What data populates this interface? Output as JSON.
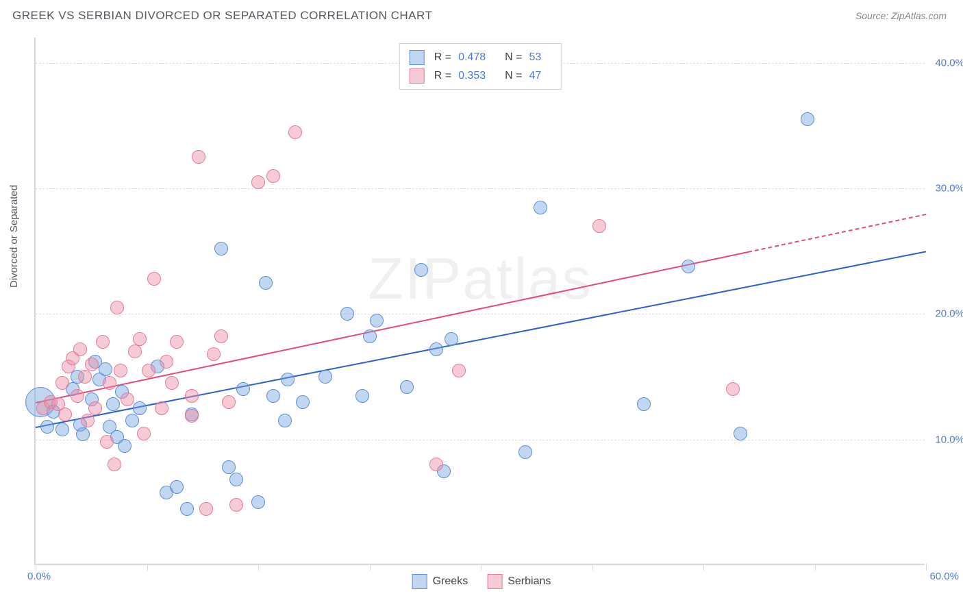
{
  "title": "GREEK VS SERBIAN DIVORCED OR SEPARATED CORRELATION CHART",
  "source": "Source: ZipAtlas.com",
  "watermark_a": "ZIP",
  "watermark_b": "atlas",
  "chart": {
    "type": "scatter",
    "y_axis_label": "Divorced or Separated",
    "xlim": [
      0,
      60
    ],
    "ylim": [
      0,
      42
    ],
    "x_ticks": [
      0,
      7.5,
      15,
      22.5,
      30,
      37.5,
      45,
      52.5,
      60
    ],
    "x_tick_labels_shown": {
      "0": "0.0%",
      "60": "60.0%"
    },
    "y_gridlines": [
      10,
      20,
      30,
      40
    ],
    "y_tick_labels": {
      "10": "10.0%",
      "20": "20.0%",
      "30": "30.0%",
      "40": "40.0%"
    },
    "background_color": "#ffffff",
    "grid_color": "#dcdcdc",
    "axis_color": "#d8d8d8",
    "tick_label_color": "#4a7ad4",
    "series": [
      {
        "name": "Greeks",
        "marker_fill": "rgba(117,163,224,0.45)",
        "marker_stroke": "#5c8fd6",
        "marker_radius": 9,
        "trend_color": "#2a62c9",
        "trend_width": 2.5,
        "trend_x0": 0,
        "trend_y0": 11.0,
        "trend_x1": 60,
        "trend_y1": 25.0,
        "trend_solid_until_x": 60,
        "points": [
          [
            0.3,
            13.0,
            22
          ],
          [
            0.8,
            11.0,
            10
          ],
          [
            1.2,
            12.2,
            10
          ],
          [
            1.8,
            10.8,
            10
          ],
          [
            2.5,
            14.0,
            10
          ],
          [
            2.8,
            15.0,
            10
          ],
          [
            3.0,
            11.2,
            10
          ],
          [
            3.2,
            10.4,
            10
          ],
          [
            3.8,
            13.2,
            10
          ],
          [
            4.0,
            16.2,
            10
          ],
          [
            4.3,
            14.8,
            10
          ],
          [
            4.7,
            15.6,
            10
          ],
          [
            5.0,
            11.0,
            10
          ],
          [
            5.2,
            12.8,
            10
          ],
          [
            5.5,
            10.2,
            10
          ],
          [
            5.8,
            13.8,
            10
          ],
          [
            6.0,
            9.5,
            10
          ],
          [
            6.5,
            11.5,
            10
          ],
          [
            7.0,
            12.5,
            10
          ],
          [
            8.2,
            15.8,
            10
          ],
          [
            8.8,
            5.8,
            10
          ],
          [
            9.5,
            6.2,
            10
          ],
          [
            10.2,
            4.5,
            10
          ],
          [
            10.5,
            12.0,
            10
          ],
          [
            12.5,
            25.2,
            10
          ],
          [
            13.0,
            7.8,
            10
          ],
          [
            13.5,
            6.8,
            10
          ],
          [
            14.0,
            14.0,
            10
          ],
          [
            15.0,
            5.0,
            10
          ],
          [
            15.5,
            22.5,
            10
          ],
          [
            16.0,
            13.5,
            10
          ],
          [
            16.8,
            11.5,
            10
          ],
          [
            17.0,
            14.8,
            10
          ],
          [
            18.0,
            13.0,
            10
          ],
          [
            19.5,
            15.0,
            10
          ],
          [
            21.0,
            20.0,
            10
          ],
          [
            22.0,
            13.5,
            10
          ],
          [
            22.5,
            18.2,
            10
          ],
          [
            23.0,
            19.5,
            10
          ],
          [
            25.0,
            14.2,
            10
          ],
          [
            26.0,
            23.5,
            10
          ],
          [
            27.0,
            17.2,
            10
          ],
          [
            27.5,
            7.5,
            10
          ],
          [
            28.0,
            18.0,
            10
          ],
          [
            33.0,
            9.0,
            10
          ],
          [
            34.0,
            28.5,
            10
          ],
          [
            41.0,
            12.8,
            10
          ],
          [
            44.0,
            23.8,
            10
          ],
          [
            47.5,
            10.5,
            10
          ],
          [
            52.0,
            35.5,
            10
          ]
        ]
      },
      {
        "name": "Serbians",
        "marker_fill": "rgba(238,140,165,0.45)",
        "marker_stroke": "#e77a9a",
        "marker_radius": 9,
        "trend_color": "#e34b78",
        "trend_width": 2,
        "trend_x0": 0,
        "trend_y0": 13.0,
        "trend_x1": 60,
        "trend_y1": 28.0,
        "trend_solid_until_x": 48,
        "points": [
          [
            0.5,
            12.5,
            10
          ],
          [
            1.0,
            13.0,
            10
          ],
          [
            1.5,
            12.8,
            10
          ],
          [
            1.8,
            14.5,
            10
          ],
          [
            2.0,
            12.0,
            10
          ],
          [
            2.2,
            15.8,
            10
          ],
          [
            2.5,
            16.5,
            10
          ],
          [
            2.8,
            13.5,
            10
          ],
          [
            3.0,
            17.2,
            10
          ],
          [
            3.3,
            15.0,
            10
          ],
          [
            3.5,
            11.5,
            10
          ],
          [
            3.8,
            16.0,
            10
          ],
          [
            4.0,
            12.5,
            10
          ],
          [
            4.5,
            17.8,
            10
          ],
          [
            4.8,
            9.8,
            10
          ],
          [
            5.0,
            14.5,
            10
          ],
          [
            5.3,
            8.0,
            10
          ],
          [
            5.7,
            15.5,
            10
          ],
          [
            5.5,
            20.5,
            10
          ],
          [
            6.2,
            13.2,
            10
          ],
          [
            6.7,
            17.0,
            10
          ],
          [
            7.0,
            18.0,
            10
          ],
          [
            7.3,
            10.5,
            10
          ],
          [
            7.6,
            15.5,
            10
          ],
          [
            8.0,
            22.8,
            10
          ],
          [
            8.5,
            12.5,
            10
          ],
          [
            8.8,
            16.2,
            10
          ],
          [
            9.2,
            14.5,
            10
          ],
          [
            9.5,
            17.8,
            10
          ],
          [
            10.5,
            13.5,
            10
          ],
          [
            11.0,
            32.5,
            10
          ],
          [
            11.5,
            4.5,
            10
          ],
          [
            12.0,
            16.8,
            10
          ],
          [
            12.5,
            18.2,
            10
          ],
          [
            13.0,
            13.0,
            10
          ],
          [
            13.5,
            4.8,
            10
          ],
          [
            15.0,
            30.5,
            10
          ],
          [
            16.0,
            31.0,
            10
          ],
          [
            17.5,
            34.5,
            10
          ],
          [
            10.5,
            11.9,
            10
          ],
          [
            27.0,
            8.0,
            10
          ],
          [
            28.5,
            15.5,
            10
          ],
          [
            38.0,
            27.0,
            10
          ],
          [
            47.0,
            14.0,
            10
          ]
        ]
      }
    ],
    "legend_top": [
      {
        "swatch_fill": "rgba(117,163,224,0.45)",
        "swatch_stroke": "#5c8fd6",
        "R": "0.478",
        "N": "53"
      },
      {
        "swatch_fill": "rgba(238,140,165,0.45)",
        "swatch_stroke": "#e77a9a",
        "R": "0.353",
        "N": "47"
      }
    ],
    "legend_bottom": [
      {
        "swatch_fill": "rgba(117,163,224,0.45)",
        "swatch_stroke": "#5c8fd6",
        "label": "Greeks"
      },
      {
        "swatch_fill": "rgba(238,140,165,0.45)",
        "swatch_stroke": "#e77a9a",
        "label": "Serbians"
      }
    ]
  }
}
